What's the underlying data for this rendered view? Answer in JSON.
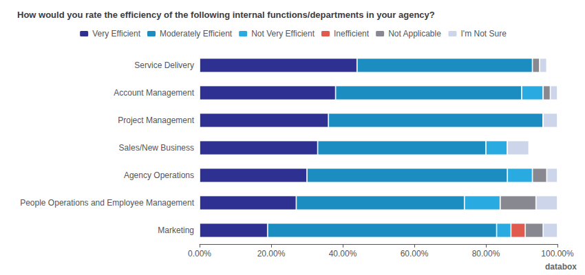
{
  "chart_data": {
    "type": "bar",
    "orientation": "horizontal",
    "stacked": true,
    "title": "How would you rate the efficiency of the following internal functions/departments in your agency?",
    "categories": [
      "Service Delivery",
      "Account Management",
      "Project Management",
      "Sales/New Business",
      "Agency Operations",
      "People Operations and Employee Management",
      "Marketing"
    ],
    "series": [
      {
        "name": "Very Efficient",
        "color": "#2e3192",
        "values": [
          0.44,
          0.38,
          0.36,
          0.33,
          0.3,
          0.27,
          0.19
        ]
      },
      {
        "name": "Moderately Efficient",
        "color": "#1b8dc0",
        "values": [
          0.49,
          0.52,
          0.6,
          0.47,
          0.56,
          0.47,
          0.64
        ]
      },
      {
        "name": "Not Very Efficient",
        "color": "#29abe2",
        "values": [
          0.0,
          0.06,
          0.0,
          0.06,
          0.07,
          0.1,
          0.04
        ]
      },
      {
        "name": "Inefficient",
        "color": "#e05a4e",
        "values": [
          0.0,
          0.0,
          0.0,
          0.0,
          0.0,
          0.0,
          0.04
        ]
      },
      {
        "name": "Not Applicable",
        "color": "#888890",
        "values": [
          0.02,
          0.02,
          0.0,
          0.0,
          0.04,
          0.1,
          0.05
        ]
      },
      {
        "name": "I'm Not Sure",
        "color": "#cdd5ea",
        "values": [
          0.02,
          0.02,
          0.04,
          0.06,
          0.03,
          0.06,
          0.04
        ]
      }
    ],
    "xlim": [
      0,
      1.0
    ],
    "xticks": [
      {
        "value": 0.0,
        "label": "0.00%"
      },
      {
        "value": 0.2,
        "label": "20.00%"
      },
      {
        "value": 0.4,
        "label": "40.00%"
      },
      {
        "value": 0.6,
        "label": "60.00%"
      },
      {
        "value": 0.8,
        "label": "80.00%"
      },
      {
        "value": 1.0,
        "label": "100.00%"
      }
    ],
    "grid": false,
    "legend": "top",
    "annotations": [
      "databox"
    ]
  }
}
